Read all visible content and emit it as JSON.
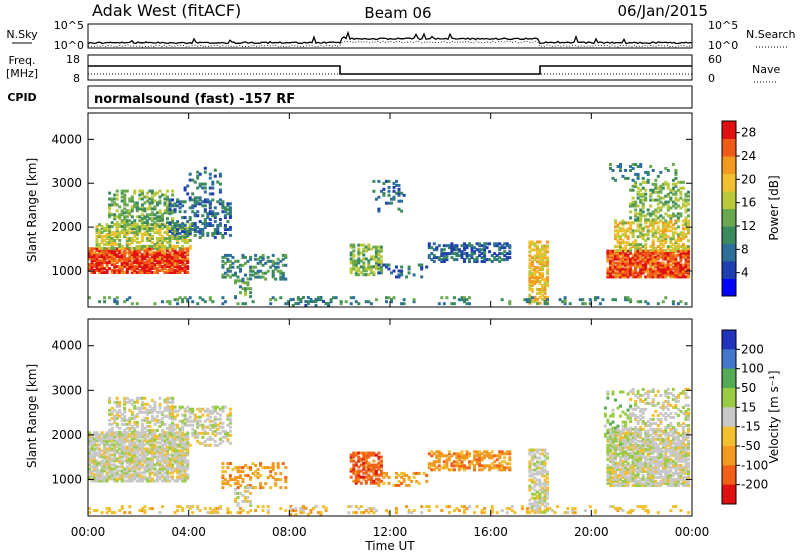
{
  "header": {
    "station": "Adak West (fitACF)",
    "beam": "Beam 06",
    "date": "06/Jan/2015"
  },
  "top_panels": {
    "nsky_label": "N.Sky",
    "nsky_ticks": [
      "10^5",
      "10^0"
    ],
    "nsearch_label": "N.Search",
    "freq_label_1": "Freq.",
    "freq_label_2": "[MHz]",
    "freq_ticks": [
      "18",
      "8"
    ],
    "nave_label": "Nave",
    "nave_ticks": [
      "60",
      "0"
    ],
    "cpid_label": "CPID",
    "cpid_value": "normalsound (fast) -157 RF"
  },
  "chart_data": [
    {
      "type": "heatmap",
      "name": "power",
      "ylabel": "Slant Range [km]",
      "xlabel": "Time UT",
      "x_ticks": [
        "00:00",
        "04:00",
        "08:00",
        "12:00",
        "16:00",
        "20:00",
        "00:00"
      ],
      "xlim_hours": [
        0,
        24
      ],
      "ylim_km": [
        180,
        4600
      ],
      "y_ticks": [
        1000,
        2000,
        3000,
        4000
      ],
      "colorbar": {
        "label": "Power [dB]",
        "ticks": [
          "4",
          "8",
          "12",
          "16",
          "20",
          "24",
          "28"
        ],
        "range": [
          0,
          30
        ],
        "colors": [
          "#0000ff",
          "#1f3fb0",
          "#2e6e9a",
          "#3b8a5e",
          "#6aa84f",
          "#b8c93a",
          "#f2c02f",
          "#f29a1f",
          "#f05a18",
          "#e01010"
        ]
      },
      "blobs": [
        {
          "t0": 0.0,
          "t1": 4.0,
          "r0": 1000,
          "r1": 1550,
          "p": 27,
          "d": 0.85
        },
        {
          "t0": 0.3,
          "t1": 4.1,
          "r0": 1550,
          "r1": 2100,
          "p": 16,
          "d": 0.6
        },
        {
          "t0": 0.8,
          "t1": 3.4,
          "r0": 2000,
          "r1": 2900,
          "p": 13,
          "d": 0.45
        },
        {
          "t0": 3.2,
          "t1": 5.6,
          "r0": 1800,
          "r1": 2700,
          "p": 8,
          "d": 0.35
        },
        {
          "t0": 3.8,
          "t1": 5.2,
          "r0": 2700,
          "r1": 3400,
          "p": 8,
          "d": 0.15
        },
        {
          "t0": 5.3,
          "t1": 7.8,
          "r0": 850,
          "r1": 1400,
          "p": 10,
          "d": 0.35
        },
        {
          "t0": 5.8,
          "t1": 6.4,
          "r0": 450,
          "r1": 900,
          "p": 12,
          "d": 0.4
        },
        {
          "t0": 8.0,
          "t1": 9.5,
          "r0": 250,
          "r1": 450,
          "p": 8,
          "d": 0.3
        },
        {
          "t0": 10.4,
          "t1": 11.6,
          "r0": 950,
          "r1": 1650,
          "p": 14,
          "d": 0.55
        },
        {
          "t0": 11.3,
          "t1": 12.5,
          "r0": 2400,
          "r1": 3100,
          "p": 8,
          "d": 0.15
        },
        {
          "t0": 11.5,
          "t1": 13.4,
          "r0": 900,
          "r1": 1200,
          "p": 7,
          "d": 0.25
        },
        {
          "t0": 13.5,
          "t1": 16.8,
          "r0": 1250,
          "r1": 1700,
          "p": 7,
          "d": 0.5
        },
        {
          "t0": 17.5,
          "t1": 18.3,
          "r0": 300,
          "r1": 1700,
          "p": 20,
          "d": 0.6
        },
        {
          "t0": 20.6,
          "t1": 24.0,
          "r0": 900,
          "r1": 1500,
          "p": 26,
          "d": 0.85
        },
        {
          "t0": 20.9,
          "t1": 24.0,
          "r0": 1500,
          "r1": 2200,
          "p": 18,
          "d": 0.55
        },
        {
          "t0": 21.5,
          "t1": 24.0,
          "r0": 2200,
          "r1": 3100,
          "p": 14,
          "d": 0.35
        },
        {
          "t0": 20.5,
          "t1": 23.5,
          "r0": 3100,
          "r1": 3500,
          "p": 10,
          "d": 0.15
        },
        {
          "t0": 0.0,
          "t1": 24.0,
          "r0": 200,
          "r1": 450,
          "p": 10,
          "d": 0.18
        }
      ]
    },
    {
      "type": "heatmap",
      "name": "velocity",
      "ylabel": "Slant Range [km]",
      "xlabel": "Time UT",
      "x_ticks": [
        "00:00",
        "04:00",
        "08:00",
        "12:00",
        "16:00",
        "20:00",
        "00:00"
      ],
      "xlim_hours": [
        0,
        24
      ],
      "ylim_km": [
        180,
        4600
      ],
      "y_ticks": [
        1000,
        2000,
        3000,
        4000
      ],
      "colorbar": {
        "label": "Velocity [m s⁻¹]",
        "ticks": [
          "200",
          "100",
          "50",
          "15",
          "-15",
          "-50",
          "-100",
          "-200"
        ],
        "colors": [
          "#2233bb",
          "#4477cc",
          "#55aa55",
          "#99cc44",
          "#c8c8c8",
          "#f2c02f",
          "#f29a1f",
          "#f06018",
          "#e01010"
        ]
      },
      "blobs": [
        {
          "t0": 0.0,
          "t1": 4.0,
          "r0": 1000,
          "r1": 2100,
          "v": 4,
          "d": 0.8
        },
        {
          "t0": 0.8,
          "t1": 3.4,
          "r0": 2000,
          "r1": 2900,
          "v": 4,
          "d": 0.45
        },
        {
          "t0": 3.2,
          "t1": 5.6,
          "r0": 1800,
          "r1": 2700,
          "v": 4,
          "d": 0.4
        },
        {
          "t0": 5.3,
          "t1": 7.8,
          "r0": 850,
          "r1": 1400,
          "v": 6,
          "d": 0.3
        },
        {
          "t0": 5.8,
          "t1": 6.4,
          "r0": 450,
          "r1": 900,
          "v": 4,
          "d": 0.35
        },
        {
          "t0": 8.0,
          "t1": 9.5,
          "r0": 250,
          "r1": 450,
          "v": 6,
          "d": 0.3
        },
        {
          "t0": 10.4,
          "t1": 11.6,
          "r0": 950,
          "r1": 1650,
          "v": 7,
          "d": 0.6
        },
        {
          "t0": 11.5,
          "t1": 13.4,
          "r0": 900,
          "r1": 1200,
          "v": 6,
          "d": 0.3
        },
        {
          "t0": 13.5,
          "t1": 16.8,
          "r0": 1250,
          "r1": 1700,
          "v": 6,
          "d": 0.5
        },
        {
          "t0": 17.5,
          "t1": 18.3,
          "r0": 300,
          "r1": 1700,
          "v": 4,
          "d": 0.6
        },
        {
          "t0": 20.6,
          "t1": 24.0,
          "r0": 900,
          "r1": 2200,
          "v": 4,
          "d": 0.8
        },
        {
          "t0": 21.5,
          "t1": 24.0,
          "r0": 2200,
          "r1": 3100,
          "v": 4,
          "d": 0.35
        },
        {
          "t0": 20.5,
          "t1": 21.6,
          "r0": 1600,
          "r1": 3000,
          "v": 3,
          "d": 0.2
        },
        {
          "t0": 0.0,
          "t1": 24.0,
          "r0": 200,
          "r1": 450,
          "v": 5,
          "d": 0.2
        }
      ]
    }
  ]
}
